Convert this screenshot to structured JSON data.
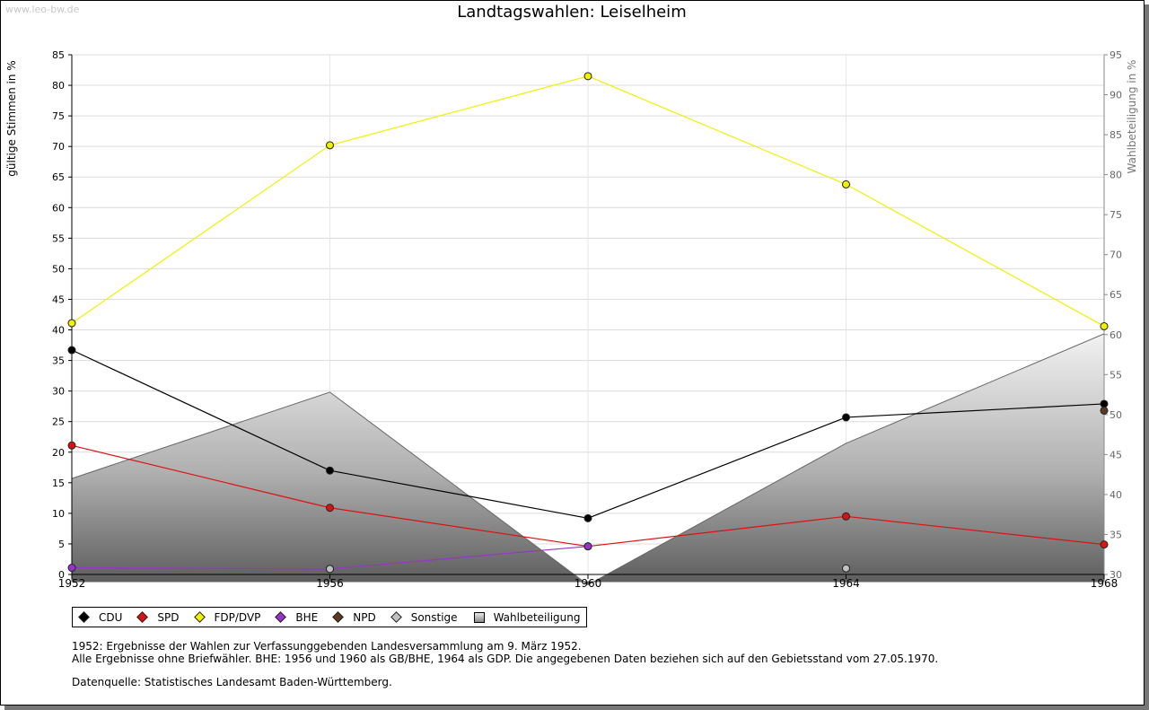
{
  "watermark": "www.leo-bw.de",
  "chart_data": {
    "type": "line",
    "title": "Landtagswahlen: Leiselheim",
    "ylabel": "gültige Stimmen in %",
    "ylabel_right": "Wahlbeteiligung in %",
    "x": [
      1952,
      1956,
      1960,
      1964,
      1968
    ],
    "ylim": [
      0,
      85
    ],
    "yticks": [
      0,
      5,
      10,
      15,
      20,
      25,
      30,
      35,
      40,
      45,
      50,
      55,
      60,
      65,
      70,
      75,
      80,
      85
    ],
    "ylim_right": [
      30,
      95
    ],
    "yticks_right": [
      30,
      35,
      40,
      45,
      50,
      55,
      60,
      65,
      70,
      75,
      80,
      85,
      90,
      95
    ],
    "grid": true,
    "series": [
      {
        "name": "CDU",
        "color": "#000000",
        "values": [
          36.7,
          17.0,
          9.2,
          25.7,
          27.9
        ]
      },
      {
        "name": "SPD",
        "color": "#dd1111",
        "values": [
          21.1,
          10.9,
          4.6,
          9.5,
          4.9
        ]
      },
      {
        "name": "FDP/DVP",
        "color": "#f0f000",
        "values": [
          41.1,
          70.2,
          81.5,
          63.8,
          40.6
        ]
      },
      {
        "name": "BHE",
        "color": "#9933cc",
        "values": [
          1.1,
          0.9,
          4.6,
          null,
          null
        ]
      },
      {
        "name": "NPD",
        "color": "#5a3a22",
        "values": [
          null,
          null,
          null,
          null,
          26.8
        ]
      },
      {
        "name": "Sonstige",
        "color": "#c0c0c0",
        "values": [
          null,
          0.9,
          null,
          1.0,
          null
        ]
      }
    ],
    "area_series": {
      "name": "Wahlbeteiligung",
      "axis": "right",
      "values": [
        42.0,
        52.8,
        28.7,
        46.4,
        60.1
      ]
    },
    "legend_position": "bottom"
  },
  "notes": [
    "1952: Ergebnisse der Wahlen zur Verfassunggebenden Landesversammlung am 9. März 1952.",
    "Alle Ergebnisse ohne Briefwähler. BHE: 1956 und 1960 als GB/BHE, 1964 als GDP. Die angegebenen Daten beziehen sich auf den Gebietsstand vom 27.05.1970."
  ],
  "source": "Datenquelle: Statistisches Landesamt Baden-Württemberg."
}
